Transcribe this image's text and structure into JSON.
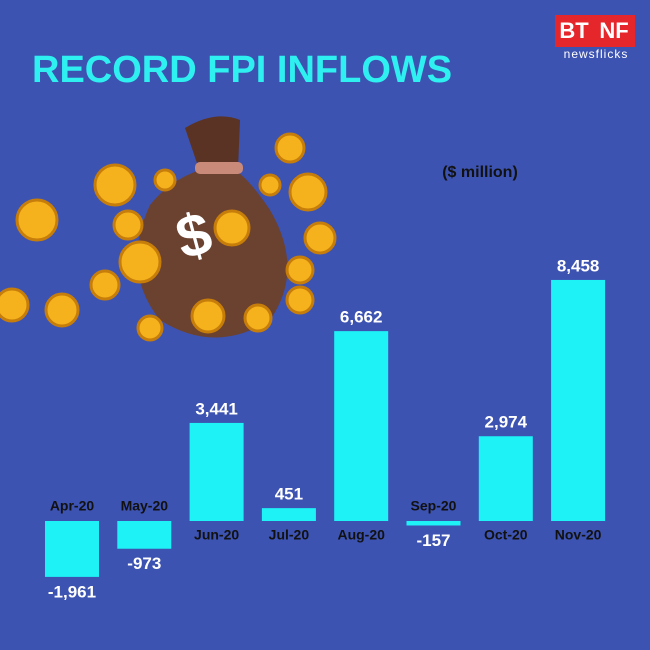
{
  "brand": {
    "left": "BT",
    "right": "NF",
    "tagline": "newsflicks"
  },
  "chart_data": {
    "type": "bar",
    "title": "RECORD FPI INFLOWS",
    "subtitle": "($ million)",
    "categories": [
      "Apr-20",
      "May-20",
      "Jun-20",
      "Jul-20",
      "Aug-20",
      "Sep-20",
      "Oct-20",
      "Nov-20"
    ],
    "values": [
      -1961,
      -973,
      3441,
      451,
      6662,
      -157,
      2974,
      8458
    ],
    "value_labels": [
      "-1,961",
      "-973",
      "3,441",
      "451",
      "6,662",
      "-157",
      "2,974",
      "8,458"
    ],
    "color": "#1ef2f7"
  }
}
